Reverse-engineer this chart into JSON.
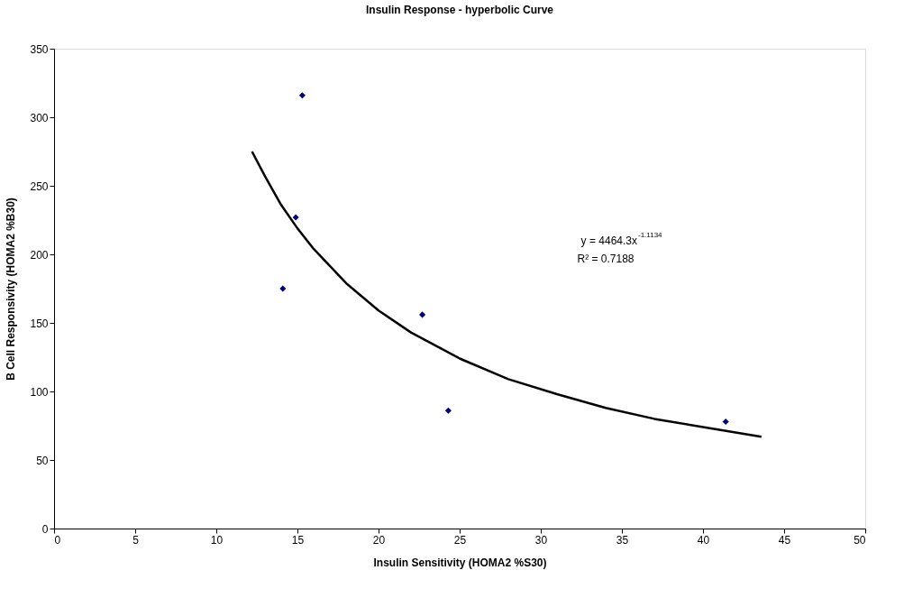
{
  "chart_data": {
    "type": "scatter",
    "title": "Insulin Response - hyperbolic Curve",
    "xlabel": "Insulin Sensitivity (HOMA2 %S30)",
    "ylabel": "B Cell Responsivity (HOMA2 %B30)",
    "xlim": [
      0,
      50
    ],
    "xticks": [
      0,
      5,
      10,
      15,
      20,
      25,
      30,
      35,
      40,
      45,
      50
    ],
    "ylim": [
      0,
      350
    ],
    "yticks": [
      0,
      50,
      100,
      150,
      200,
      250,
      300,
      350
    ],
    "grid": false,
    "marker": "diamond",
    "series": [
      {
        "color": "#000080",
        "x": [
          15.3,
          14.9,
          14.1,
          22.7,
          24.3,
          41.4
        ],
        "values": [
          316,
          227,
          175,
          156,
          86,
          78
        ]
      },
      {
        "type": "line",
        "color": "#000000",
        "line_style": "solid",
        "marker": "none",
        "x": [
          12.2,
          13,
          14,
          15,
          16,
          18,
          20,
          22,
          25,
          28,
          31,
          34,
          37,
          40,
          43.6
        ],
        "values": [
          275,
          257,
          236,
          219,
          204,
          179,
          159,
          143,
          124,
          109,
          98,
          88,
          80,
          74,
          67
        ]
      }
    ],
    "annotations": [
      "y = 4464.3x$^{-1.1134}$",
      "R² = 0.7188"
    ]
  }
}
